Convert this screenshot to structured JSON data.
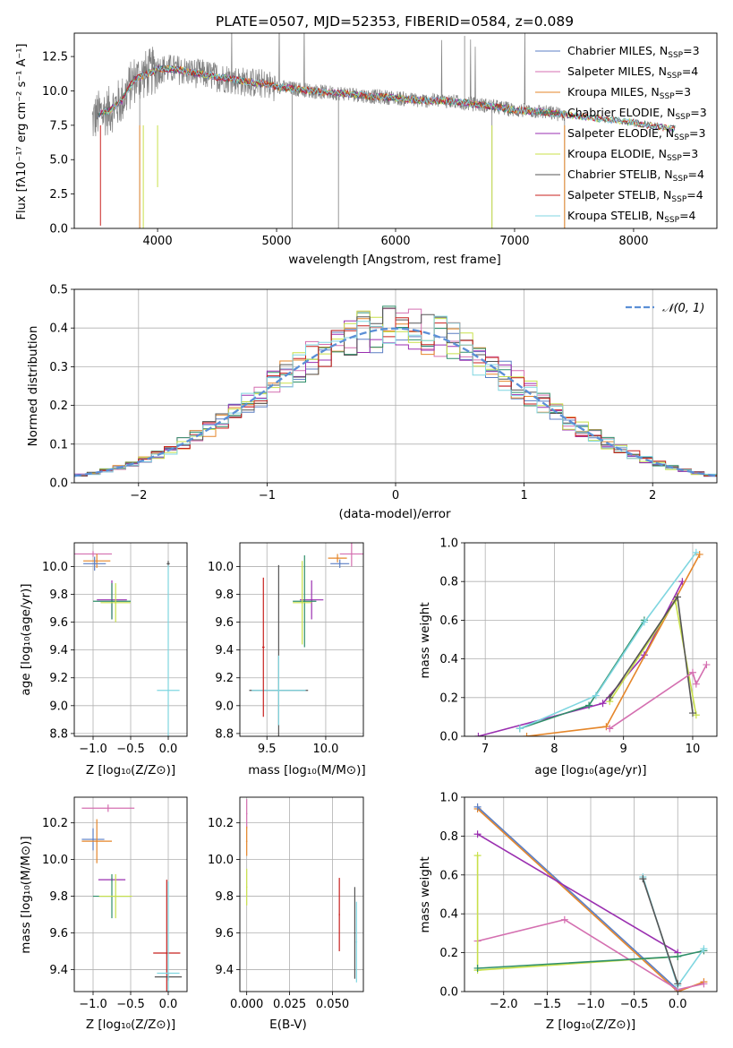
{
  "chart_data": [
    {
      "id": "spectrum",
      "type": "line",
      "title": "PLATE=0507, MJD=52353, FIBERID=0584, z=0.089",
      "xlabel": "wavelength [Angstrom, rest frame]",
      "ylabel": "Flux [fλ10⁻¹⁷ erg cm⁻² s⁻¹ A⁻¹]",
      "xlim": [
        3300,
        8700
      ],
      "ylim": [
        0,
        14.2
      ],
      "xticks": [
        4000,
        5000,
        6000,
        7000,
        8000
      ],
      "yticks": [
        0.0,
        2.5,
        5.0,
        7.5,
        10.0,
        12.5
      ],
      "legend_position": "top-right",
      "series": [
        {
          "name": "Chabrier MILES, N_SSP=3",
          "color": "#5b7fc4"
        },
        {
          "name": "Salpeter MILES, N_SSP=4",
          "color": "#d46fb0"
        },
        {
          "name": "Kroupa MILES, N_SSP=3",
          "color": "#e5862a"
        },
        {
          "name": "Chabrier ELODIE, N_SSP=3",
          "color": "#2f8f6a"
        },
        {
          "name": "Salpeter ELODIE, N_SSP=3",
          "color": "#9a2fb0"
        },
        {
          "name": "Kroupa ELODIE, N_SSP=3",
          "color": "#c8e04a"
        },
        {
          "name": "Chabrier STELIB, N_SSP=4",
          "color": "#555555"
        },
        {
          "name": "Salpeter STELIB, N_SSP=4",
          "color": "#c8201e"
        },
        {
          "name": "Kroupa STELIB, N_SSP=4",
          "color": "#7fd6e0"
        }
      ],
      "observed_envelope": {
        "x": [
          3450,
          3500,
          3600,
          3700,
          3800,
          3900,
          4000,
          4100,
          4200,
          4300,
          4400,
          4500,
          4600,
          4700,
          4800,
          4900,
          5000,
          5200,
          5400,
          5600,
          5800,
          6000,
          6200,
          6400,
          6600,
          6800,
          7000,
          7200,
          7400,
          7600,
          7800,
          8000,
          8200,
          8400
        ],
        "y": [
          7.8,
          8.3,
          8.6,
          9.3,
          10.8,
          11.2,
          11.6,
          11.6,
          11.5,
          11.3,
          11.2,
          11.0,
          10.9,
          10.7,
          10.6,
          10.5,
          10.3,
          10.1,
          9.9,
          9.8,
          9.6,
          9.5,
          9.3,
          9.3,
          9.1,
          8.9,
          8.6,
          8.5,
          8.3,
          8.1,
          7.9,
          7.7,
          7.4,
          7.2
        ]
      }
    },
    {
      "id": "residuals",
      "type": "area",
      "xlabel": "(data-model)/error",
      "ylabel": "Normed distribution",
      "xlim": [
        -2.5,
        2.5
      ],
      "ylim": [
        0,
        0.5
      ],
      "xticks": [
        -2,
        -1,
        0,
        1,
        2
      ],
      "yticks": [
        0.0,
        0.1,
        0.2,
        0.3,
        0.4,
        0.5
      ],
      "legend": [
        "𝒩(0, 1)"
      ],
      "legend_position": "top-right",
      "gaussian": {
        "mean": 0,
        "sigma": 1,
        "color": "#5b8fd6"
      },
      "bin_width": 0.1,
      "bin_start": -2.5
    },
    {
      "id": "age-vs-Z",
      "type": "scatter",
      "xlabel": "Z [log₁₀(Z/Z⊙)]",
      "ylabel": "age  [log₁₀(age/yr)]",
      "xlim": [
        -1.25,
        0.25
      ],
      "ylim": [
        8.78,
        10.17
      ],
      "xticks": [
        -1.0,
        -0.5,
        0.0
      ],
      "yticks": [
        8.8,
        9.0,
        9.2,
        9.4,
        9.6,
        9.8,
        10.0
      ],
      "points": [
        {
          "x": -1.0,
          "y": 10.09,
          "xerr": 0.25,
          "yerr": 0.02,
          "color": "#d46fb0"
        },
        {
          "x": -0.95,
          "y": 10.04,
          "xerr": 0.18,
          "yerr": 0.05,
          "color": "#e5862a"
        },
        {
          "x": -0.98,
          "y": 10.02,
          "xerr": 0.15,
          "yerr": 0.05,
          "color": "#5b7fc4"
        },
        {
          "x": -0.75,
          "y": 9.76,
          "xerr": 0.2,
          "yerr": 0.14,
          "color": "#9a2fb0"
        },
        {
          "x": -0.75,
          "y": 9.75,
          "xerr": 0.25,
          "yerr": 0.13,
          "color": "#2f8f6a"
        },
        {
          "x": -0.7,
          "y": 9.74,
          "xerr": 0.2,
          "yerr": 0.14,
          "color": "#c8e04a"
        },
        {
          "x": 0.0,
          "y": 10.02,
          "xerr": 0.02,
          "yerr": 0.02,
          "color": "#555555"
        },
        {
          "x": 0.0,
          "y": 9.11,
          "xerr": 0.15,
          "yerr": 0.9,
          "color": "#7fd6e0"
        }
      ]
    },
    {
      "id": "age-vs-mass",
      "type": "scatter",
      "xlabel": "mass [log₁₀(M/M⊙)]",
      "xlim": [
        9.27,
        10.32
      ],
      "ylim": [
        8.78,
        10.17
      ],
      "xticks": [
        9.5,
        10.0
      ],
      "yticks": [
        8.8,
        9.0,
        9.2,
        9.4,
        9.6,
        9.8,
        10.0
      ],
      "points": [
        {
          "x": 10.22,
          "y": 10.09,
          "xerr": 0.1,
          "yerr": 0.09,
          "color": "#d46fb0"
        },
        {
          "x": 10.1,
          "y": 10.06,
          "xerr": 0.08,
          "yerr": 0.03,
          "color": "#e5862a"
        },
        {
          "x": 10.12,
          "y": 10.02,
          "xerr": 0.08,
          "yerr": 0.03,
          "color": "#5b7fc4"
        },
        {
          "x": 9.88,
          "y": 9.76,
          "xerr": 0.1,
          "yerr": 0.14,
          "color": "#9a2fb0"
        },
        {
          "x": 9.82,
          "y": 9.75,
          "xerr": 0.1,
          "yerr": 0.33,
          "color": "#2f8f6a"
        },
        {
          "x": 9.8,
          "y": 9.74,
          "xerr": 0.08,
          "yerr": 0.3,
          "color": "#c8e04a"
        },
        {
          "x": 9.6,
          "y": 9.11,
          "xerr": 0.25,
          "yerr": 0.9,
          "color": "#555555"
        },
        {
          "x": 9.6,
          "y": 9.11,
          "xerr": 0.23,
          "yerr": 0.25,
          "color": "#7fd6e0"
        },
        {
          "x": 9.47,
          "y": 9.42,
          "xerr": 0.01,
          "yerr": 0.5,
          "color": "#c8201e"
        }
      ]
    },
    {
      "id": "weight-vs-age",
      "type": "line",
      "xlabel": "age  [log₁₀(age/yr)]",
      "ylabel": "mass weight",
      "xlim": [
        6.7,
        10.35
      ],
      "ylim": [
        0,
        1.0
      ],
      "xticks": [
        7,
        8,
        9,
        10
      ],
      "yticks": [
        0.0,
        0.2,
        0.4,
        0.6,
        0.8,
        1.0
      ],
      "series": [
        {
          "color": "#9a2fb0",
          "x": [
            6.9,
            8.7,
            9.3,
            9.85
          ],
          "y": [
            0.0,
            0.17,
            0.42,
            0.8
          ]
        },
        {
          "color": "#2f8f6a",
          "x": [
            7.5,
            8.5,
            9.3
          ],
          "y": [
            0.04,
            0.16,
            0.6
          ]
        },
        {
          "color": "#7fd6e0",
          "x": [
            7.5,
            8.6,
            9.3,
            10.05
          ],
          "y": [
            0.04,
            0.21,
            0.59,
            0.95
          ]
        },
        {
          "color": "#e5862a",
          "x": [
            7.6,
            8.75,
            10.1
          ],
          "y": [
            0.0,
            0.05,
            0.94
          ]
        },
        {
          "color": "#c8e04a",
          "x": [
            8.8,
            9.75,
            10.05
          ],
          "y": [
            0.18,
            0.7,
            0.11
          ]
        },
        {
          "color": "#555555",
          "x": [
            8.8,
            9.78,
            10.0
          ],
          "y": [
            0.2,
            0.72,
            0.12
          ]
        },
        {
          "color": "#d46fb0",
          "x": [
            8.8,
            10.0,
            10.05,
            10.2
          ],
          "y": [
            0.04,
            0.33,
            0.27,
            0.37
          ]
        }
      ]
    },
    {
      "id": "mass-vs-Z",
      "type": "scatter",
      "xlabel": "Z [log₁₀(Z/Z⊙)]",
      "ylabel": "mass [log₁₀(M/M⊙)]",
      "xlim": [
        -1.25,
        0.25
      ],
      "ylim": [
        9.28,
        10.34
      ],
      "xticks": [
        -1.0,
        -0.5,
        0.0
      ],
      "yticks": [
        9.4,
        9.6,
        9.8,
        10.0,
        10.2
      ],
      "points": [
        {
          "x": -0.8,
          "y": 10.28,
          "xerr": 0.35,
          "yerr": 0.02,
          "color": "#d46fb0"
        },
        {
          "x": -1.0,
          "y": 10.11,
          "xerr": 0.15,
          "yerr": 0.06,
          "color": "#5b7fc4"
        },
        {
          "x": -0.95,
          "y": 10.1,
          "xerr": 0.2,
          "yerr": 0.12,
          "color": "#e5862a"
        },
        {
          "x": -0.75,
          "y": 9.89,
          "xerr": 0.18,
          "yerr": 0.01,
          "color": "#9a2fb0"
        },
        {
          "x": -0.75,
          "y": 9.8,
          "xerr": 0.25,
          "yerr": 0.12,
          "color": "#2f8f6a"
        },
        {
          "x": -0.7,
          "y": 9.8,
          "xerr": 0.22,
          "yerr": 0.12,
          "color": "#c8e04a"
        },
        {
          "x": -0.02,
          "y": 9.49,
          "xerr": 0.18,
          "yerr": 0.4,
          "color": "#c8201e"
        },
        {
          "x": 0.0,
          "y": 9.36,
          "xerr": 0.18,
          "yerr": 0.02,
          "color": "#555555"
        },
        {
          "x": 0.0,
          "y": 9.38,
          "xerr": 0.15,
          "yerr": 0.5,
          "color": "#7fd6e0"
        }
      ]
    },
    {
      "id": "mass-vs-EBV",
      "type": "scatter",
      "xlabel": "E(B-V)",
      "xlim": [
        -0.004,
        0.068
      ],
      "ylim": [
        9.28,
        10.34
      ],
      "xticks": [
        0.0,
        0.025,
        0.05
      ],
      "xticklabels": [
        "0.000",
        "0.025",
        "0.050"
      ],
      "yticks": [
        9.4,
        9.6,
        9.8,
        10.0,
        10.2
      ],
      "points": [
        {
          "x": 0.0,
          "y": 10.25,
          "yerr": 0.08,
          "color": "#d46fb0"
        },
        {
          "x": 0.0,
          "y": 10.1,
          "yerr": 0.08,
          "color": "#e5862a"
        },
        {
          "x": 0.0,
          "y": 9.85,
          "yerr": 0.1,
          "color": "#c8e04a"
        },
        {
          "x": 0.054,
          "y": 9.7,
          "yerr": 0.2,
          "color": "#c8201e"
        },
        {
          "x": 0.063,
          "y": 9.6,
          "yerr": 0.25,
          "color": "#555555"
        },
        {
          "x": 0.064,
          "y": 9.55,
          "yerr": 0.22,
          "color": "#7fd6e0"
        }
      ]
    },
    {
      "id": "weight-vs-Z",
      "type": "line",
      "xlabel": "Z [log₁₀(Z/Z⊙)]",
      "ylabel": "mass weight",
      "xlim": [
        -2.45,
        0.45
      ],
      "ylim": [
        0,
        1.0
      ],
      "xticks": [
        -2.0,
        -1.5,
        -1.0,
        -0.5,
        0.0
      ],
      "yticks": [
        0.0,
        0.2,
        0.4,
        0.6,
        0.8,
        1.0
      ],
      "series": [
        {
          "color": "#e5862a",
          "x": [
            -2.3,
            0.0,
            0.3
          ],
          "y": [
            0.94,
            0.0,
            0.05
          ]
        },
        {
          "color": "#5b7fc4",
          "x": [
            -2.3,
            0.0
          ],
          "y": [
            0.95,
            0.01
          ]
        },
        {
          "color": "#9a2fb0",
          "x": [
            -2.3,
            0.0
          ],
          "y": [
            0.81,
            0.2
          ]
        },
        {
          "color": "#d46fb0",
          "x": [
            -2.3,
            -1.3,
            0.0,
            0.3
          ],
          "y": [
            0.26,
            0.37,
            0.01,
            0.04
          ]
        },
        {
          "color": "#c8e04a",
          "x": [
            -2.3,
            -2.3,
            0.0
          ],
          "y": [
            0.7,
            0.11,
            0.18
          ]
        },
        {
          "color": "#2f8f6a",
          "x": [
            -2.3,
            0.0,
            0.3
          ],
          "y": [
            0.12,
            0.18,
            0.21
          ]
        },
        {
          "color": "#7fd6e0",
          "x": [
            -0.4,
            0.0,
            0.3
          ],
          "y": [
            0.59,
            0.03,
            0.22
          ]
        },
        {
          "color": "#555555",
          "x": [
            -0.4,
            0.0
          ],
          "y": [
            0.58,
            0.04
          ]
        }
      ]
    }
  ]
}
